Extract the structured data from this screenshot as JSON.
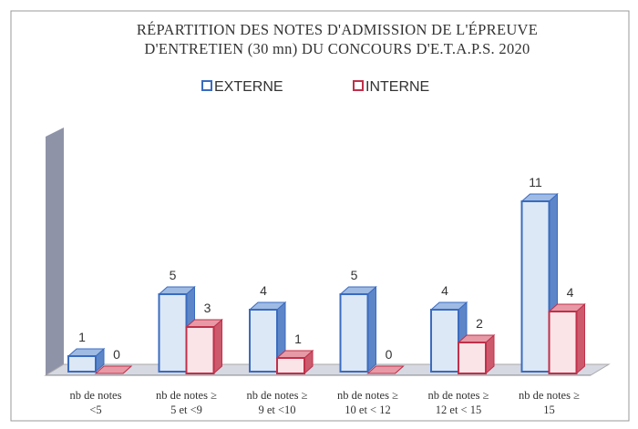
{
  "chart_data": {
    "type": "bar3d",
    "title": "RÉPARTITION DES NOTES D'ADMISSION DE L'ÉPREUVE\nD'ENTRETIEN (30 mn)  DU CONCOURS D'E.T.A.P.S. 2020",
    "categories": [
      "nb de notes\n<5",
      "nb de notes ≥\n5 et <9",
      "nb de notes ≥\n9 et <10",
      "nb de notes ≥\n10 et < 12",
      "nb de notes ≥\n12 et < 15",
      "nb de notes ≥\n15"
    ],
    "series": [
      {
        "name": "EXTERNE",
        "color": "#3a6bbf",
        "values": [
          1,
          5,
          4,
          5,
          4,
          11
        ]
      },
      {
        "name": "INTERNE",
        "color": "#c0304a",
        "values": [
          0,
          3,
          1,
          0,
          2,
          4
        ]
      }
    ]
  }
}
